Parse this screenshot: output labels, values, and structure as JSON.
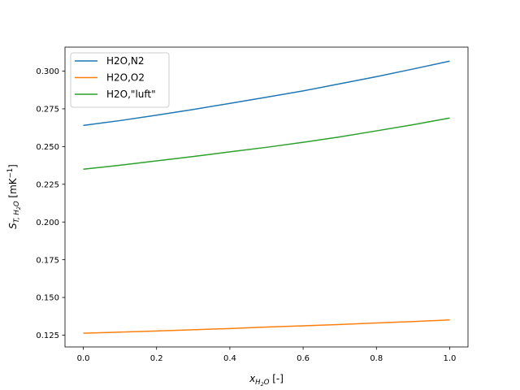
{
  "chart_data": {
    "type": "line",
    "title": "",
    "xlabel": "",
    "ylabel": "",
    "xlim": [
      -0.05,
      1.05
    ],
    "ylim": [
      0.1172,
      0.3159
    ],
    "xticks": [
      0.0,
      0.2,
      0.4,
      0.6,
      0.8,
      1.0
    ],
    "xtick_labels": [
      "0.0",
      "0.2",
      "0.4",
      "0.6",
      "0.8",
      "1.0"
    ],
    "yticks": [
      0.125,
      0.15,
      0.175,
      0.2,
      0.225,
      0.25,
      0.275,
      0.3
    ],
    "ytick_labels": [
      "0.125",
      "0.150",
      "0.175",
      "0.200",
      "0.225",
      "0.250",
      "0.275",
      "0.300"
    ],
    "grid": false,
    "legend_position": "top-left",
    "x": [
      0.0,
      0.1,
      0.2,
      0.3,
      0.4,
      0.5,
      0.6,
      0.7,
      0.8,
      0.9,
      1.0
    ],
    "series": [
      {
        "name": "H2O,N2",
        "color": "#1f77b4",
        "values": [
          0.264,
          0.2672,
          0.2708,
          0.2746,
          0.2786,
          0.2827,
          0.2869,
          0.2916,
          0.2963,
          0.3014,
          0.3066
        ]
      },
      {
        "name": "H2O,O2",
        "color": "#ff7f0e",
        "values": [
          0.1263,
          0.127,
          0.1278,
          0.1286,
          0.1294,
          0.1304,
          0.1312,
          0.1321,
          0.1331,
          0.134,
          0.1351
        ]
      },
      {
        "name": "H2O,\"luft\"",
        "color": "#2ca02c",
        "values": [
          0.235,
          0.2376,
          0.2405,
          0.2434,
          0.2465,
          0.2495,
          0.2528,
          0.2564,
          0.2604,
          0.2645,
          0.2689
        ]
      }
    ]
  }
}
